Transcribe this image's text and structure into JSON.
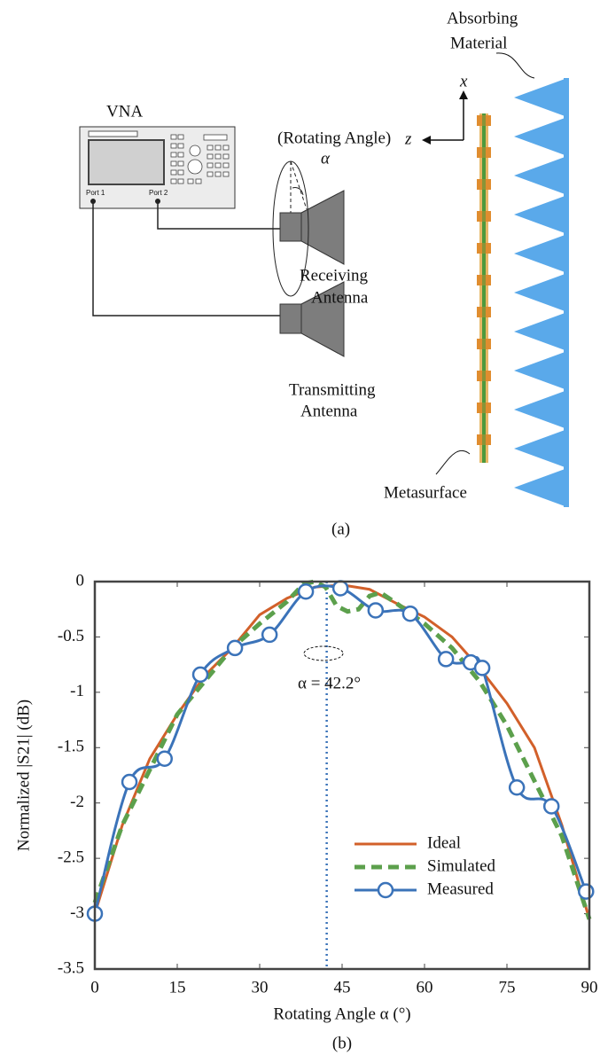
{
  "diagram": {
    "absorber_label": [
      "Absorbing",
      "Material"
    ],
    "vna": "VNA",
    "port1": "Port 1",
    "port2": "Port 2",
    "rotating": "(Rotating Angle)",
    "alpha": "α",
    "receiving": [
      "Receiving",
      "Antenna"
    ],
    "transmitting": [
      "Transmitting",
      "Antenna"
    ],
    "axis_x": "x",
    "axis_z": "z",
    "metasurface": "Metasurface",
    "caption": "(a)"
  },
  "chart_data": {
    "type": "line",
    "caption": "(b)",
    "x_label": "Rotating Angle α (°)",
    "y_label": "Normalized |S21| (dB)",
    "xlim": [
      0,
      90
    ],
    "ylim": [
      -3.5,
      0
    ],
    "xticks": [
      0,
      15,
      30,
      45,
      60,
      75,
      90
    ],
    "yticks": [
      0,
      -0.5,
      -1,
      -1.5,
      -2,
      -2.5,
      -3,
      -3.5
    ],
    "legend": "lower right",
    "marker_x": 42.2,
    "annotation": "α = 42.2°",
    "series": [
      {
        "name": "Ideal",
        "color": "#d2602a",
        "style": "solid",
        "x": [
          0,
          5,
          10,
          15,
          20,
          25,
          30,
          35,
          40,
          45,
          50,
          55,
          60,
          65,
          70,
          75,
          80,
          85,
          90
        ],
        "values": [
          -3.0,
          -2.2,
          -1.6,
          -1.2,
          -0.85,
          -0.6,
          -0.3,
          -0.15,
          -0.05,
          -0.03,
          -0.07,
          -0.2,
          -0.32,
          -0.5,
          -0.78,
          -1.1,
          -1.5,
          -2.2,
          -3.05
        ]
      },
      {
        "name": "Simulated",
        "color": "#5ca04c",
        "style": "dashed",
        "x": [
          0,
          5,
          10,
          15,
          20,
          25,
          30,
          35,
          38,
          40,
          42,
          44,
          46,
          48,
          50,
          52,
          55,
          60,
          65,
          70,
          75,
          80,
          85,
          90
        ],
        "values": [
          -2.9,
          -2.2,
          -1.7,
          -1.2,
          -0.9,
          -0.6,
          -0.38,
          -0.18,
          -0.02,
          0,
          -0.05,
          -0.22,
          -0.27,
          -0.25,
          -0.13,
          -0.1,
          -0.2,
          -0.38,
          -0.6,
          -0.9,
          -1.3,
          -1.8,
          -2.3,
          -3.05
        ]
      },
      {
        "name": "Measured",
        "color": "#3b73b9",
        "style": "markers",
        "x": [
          0,
          6.3,
          12.7,
          19.2,
          25.5,
          31.8,
          38.4,
          44.7,
          51.1,
          57.4,
          63.9,
          68.4,
          70.5,
          76.8,
          83.1,
          89.4
        ],
        "values": [
          -3.0,
          -1.81,
          -1.6,
          -0.84,
          -0.6,
          -0.48,
          -0.09,
          -0.06,
          -0.26,
          -0.29,
          -0.7,
          -0.73,
          -0.78,
          -1.86,
          -2.03,
          -2.8
        ]
      }
    ]
  }
}
